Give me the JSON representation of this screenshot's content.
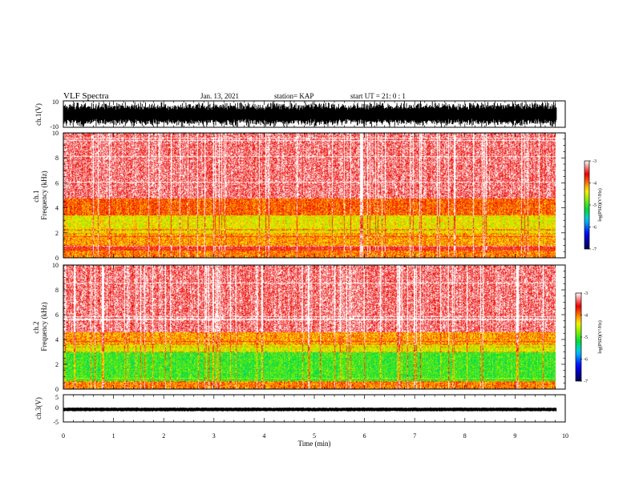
{
  "header": {
    "title": "VLF Spectra",
    "date": "Jan. 13, 2021",
    "station": "station= KAP",
    "start": "start  UT =  21: 0  : 1"
  },
  "chart_data": [
    {
      "type": "line",
      "name": "ch1-waveform",
      "ylabel": "ch.1(V)",
      "ylim": [
        -10,
        10
      ],
      "yticks": [
        "10",
        "-10"
      ],
      "xlim": [
        0,
        10
      ],
      "data_extent_min": 9.83,
      "description": "dense black waveform, saturating roughly between -10 and 10"
    },
    {
      "type": "heatmap",
      "name": "ch1-spectrogram",
      "ylabel": "ch.1\nFrequency  (kHz)",
      "ylim": [
        0,
        10
      ],
      "yticks": [
        "0",
        "2",
        "4",
        "6",
        "8",
        "10"
      ],
      "xlim": [
        0,
        10
      ],
      "data_extent_min": 9.83,
      "bands": [
        {
          "from": 0.0,
          "to": 0.6,
          "level": -4.0
        },
        {
          "from": 0.6,
          "to": 1.0,
          "level": -3.6
        },
        {
          "from": 1.0,
          "to": 2.0,
          "level": -4.1
        },
        {
          "from": 2.0,
          "to": 3.4,
          "level": -4.4
        },
        {
          "from": 3.4,
          "to": 4.8,
          "level": -3.9
        },
        {
          "from": 4.8,
          "to": 10.0,
          "level": -3.3
        }
      ],
      "colorbar": {
        "label": "log(PSD)(V²/Hz)",
        "range": [
          -7,
          -3
        ],
        "ticks": [
          "-3",
          "-4",
          "-5",
          "-6",
          "-7"
        ]
      }
    },
    {
      "type": "heatmap",
      "name": "ch2-spectrogram",
      "ylabel": "ch.2\nFrequency  (kHz)",
      "ylim": [
        0,
        10
      ],
      "yticks": [
        "0",
        "2",
        "4",
        "6",
        "8",
        "10"
      ],
      "xlim": [
        0,
        10
      ],
      "data_extent_min": 9.83,
      "bands": [
        {
          "from": 0.0,
          "to": 0.7,
          "level": -4.0
        },
        {
          "from": 0.7,
          "to": 3.0,
          "level": -5.0
        },
        {
          "from": 3.0,
          "to": 3.6,
          "level": -4.5
        },
        {
          "from": 3.6,
          "to": 4.6,
          "level": -4.1
        },
        {
          "from": 4.6,
          "to": 10.0,
          "level": -3.3
        }
      ],
      "colorbar": {
        "label": "log(PSD)(V²/Hz)",
        "range": [
          -7,
          -3
        ],
        "ticks": [
          "-3",
          "-4",
          "-5",
          "-6",
          "-7"
        ]
      }
    },
    {
      "type": "line",
      "name": "ch3-waveform",
      "ylabel": "ch.3(V)",
      "ylim": [
        -5,
        5
      ],
      "yticks": [
        "5",
        "0",
        "-5"
      ],
      "xlim": [
        0,
        10
      ],
      "data_extent_min": 9.83,
      "level": -0.4,
      "description": "thick near-constant black trace slightly below 0"
    }
  ],
  "xaxis": {
    "label": "Time  (min)",
    "ticks": [
      "0",
      "1",
      "2",
      "3",
      "4",
      "5",
      "6",
      "7",
      "8",
      "9",
      "10"
    ]
  }
}
